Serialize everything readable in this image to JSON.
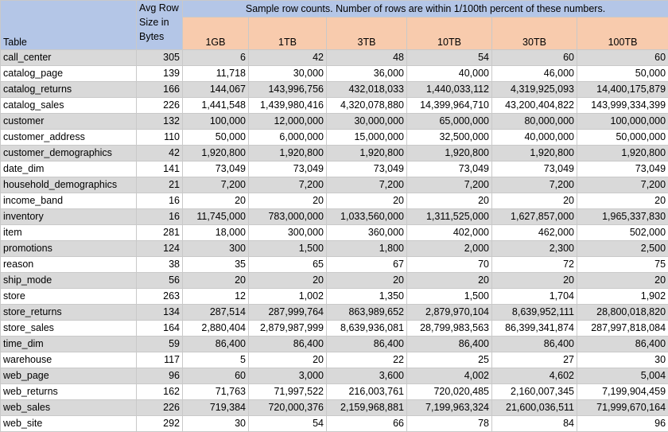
{
  "headers": {
    "table": "Table",
    "avg_row_size": "Avg Row Size in Bytes",
    "sample_caption": "Sample row counts. Number of rows are within 1/100th percent of these numbers.",
    "scales": [
      "1GB",
      "1TB",
      "3TB",
      "10TB",
      "30TB",
      "100TB"
    ]
  },
  "rows": [
    {
      "table": "call_center",
      "avg": "305",
      "counts": [
        "6",
        "42",
        "48",
        "54",
        "60",
        "60"
      ]
    },
    {
      "table": "catalog_page",
      "avg": "139",
      "counts": [
        "11,718",
        "30,000",
        "36,000",
        "40,000",
        "46,000",
        "50,000"
      ]
    },
    {
      "table": "catalog_returns",
      "avg": "166",
      "counts": [
        "144,067",
        "143,996,756",
        "432,018,033",
        "1,440,033,112",
        "4,319,925,093",
        "14,400,175,879"
      ]
    },
    {
      "table": "catalog_sales",
      "avg": "226",
      "counts": [
        "1,441,548",
        "1,439,980,416",
        "4,320,078,880",
        "14,399,964,710",
        "43,200,404,822",
        "143,999,334,399"
      ]
    },
    {
      "table": "customer",
      "avg": "132",
      "counts": [
        "100,000",
        "12,000,000",
        "30,000,000",
        "65,000,000",
        "80,000,000",
        "100,000,000"
      ]
    },
    {
      "table": "customer_address",
      "avg": "110",
      "counts": [
        "50,000",
        "6,000,000",
        "15,000,000",
        "32,500,000",
        "40,000,000",
        "50,000,000"
      ]
    },
    {
      "table": "customer_demographics",
      "avg": "42",
      "counts": [
        "1,920,800",
        "1,920,800",
        "1,920,800",
        "1,920,800",
        "1,920,800",
        "1,920,800"
      ]
    },
    {
      "table": "date_dim",
      "avg": "141",
      "counts": [
        "73,049",
        "73,049",
        "73,049",
        "73,049",
        "73,049",
        "73,049"
      ]
    },
    {
      "table": "household_demographics",
      "avg": "21",
      "counts": [
        "7,200",
        "7,200",
        "7,200",
        "7,200",
        "7,200",
        "7,200"
      ]
    },
    {
      "table": "income_band",
      "avg": "16",
      "counts": [
        "20",
        "20",
        "20",
        "20",
        "20",
        "20"
      ]
    },
    {
      "table": "inventory",
      "avg": "16",
      "counts": [
        "11,745,000",
        "783,000,000",
        "1,033,560,000",
        "1,311,525,000",
        "1,627,857,000",
        "1,965,337,830"
      ]
    },
    {
      "table": "item",
      "avg": "281",
      "counts": [
        "18,000",
        "300,000",
        "360,000",
        "402,000",
        "462,000",
        "502,000"
      ]
    },
    {
      "table": "promotions",
      "avg": "124",
      "counts": [
        "300",
        "1,500",
        "1,800",
        "2,000",
        "2,300",
        "2,500"
      ]
    },
    {
      "table": "reason",
      "avg": "38",
      "counts": [
        "35",
        "65",
        "67",
        "70",
        "72",
        "75"
      ]
    },
    {
      "table": "ship_mode",
      "avg": "56",
      "counts": [
        "20",
        "20",
        "20",
        "20",
        "20",
        "20"
      ]
    },
    {
      "table": "store",
      "avg": "263",
      "counts": [
        "12",
        "1,002",
        "1,350",
        "1,500",
        "1,704",
        "1,902"
      ]
    },
    {
      "table": "store_returns",
      "avg": "134",
      "counts": [
        "287,514",
        "287,999,764",
        "863,989,652",
        "2,879,970,104",
        "8,639,952,111",
        "28,800,018,820"
      ]
    },
    {
      "table": "store_sales",
      "avg": "164",
      "counts": [
        "2,880,404",
        "2,879,987,999",
        "8,639,936,081",
        "28,799,983,563",
        "86,399,341,874",
        "287,997,818,084"
      ]
    },
    {
      "table": "time_dim",
      "avg": "59",
      "counts": [
        "86,400",
        "86,400",
        "86,400",
        "86,400",
        "86,400",
        "86,400"
      ]
    },
    {
      "table": "warehouse",
      "avg": "117",
      "counts": [
        "5",
        "20",
        "22",
        "25",
        "27",
        "30"
      ]
    },
    {
      "table": "web_page",
      "avg": "96",
      "counts": [
        "60",
        "3,000",
        "3,600",
        "4,002",
        "4,602",
        "5,004"
      ]
    },
    {
      "table": "web_returns",
      "avg": "162",
      "counts": [
        "71,763",
        "71,997,522",
        "216,003,761",
        "720,020,485",
        "2,160,007,345",
        "7,199,904,459"
      ]
    },
    {
      "table": "web_sales",
      "avg": "226",
      "counts": [
        "719,384",
        "720,000,376",
        "2,159,968,881",
        "7,199,963,324",
        "21,600,036,511",
        "71,999,670,164"
      ]
    },
    {
      "table": "web_site",
      "avg": "292",
      "counts": [
        "30",
        "54",
        "66",
        "78",
        "84",
        "96"
      ]
    }
  ]
}
